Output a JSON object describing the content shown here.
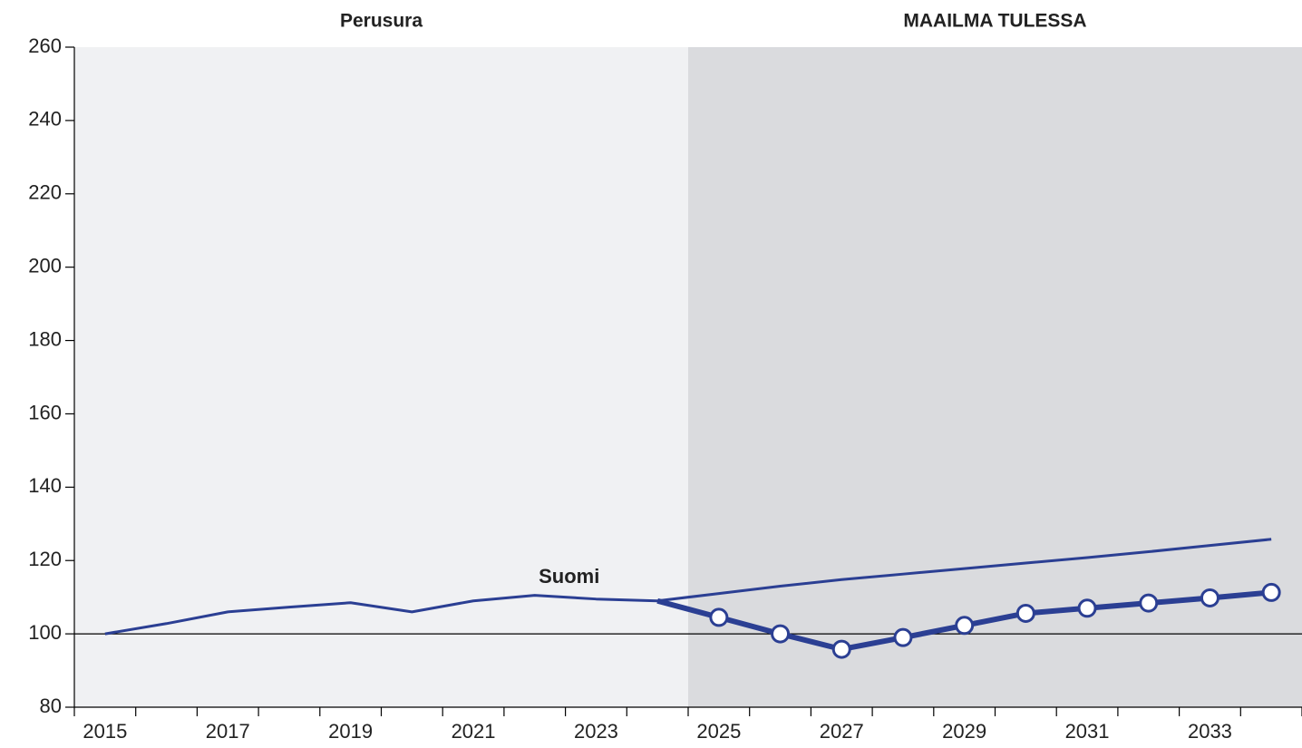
{
  "chart_data": {
    "type": "line",
    "categories": [
      "2015",
      null,
      "2017",
      null,
      "2019",
      null,
      "2021",
      null,
      "2023",
      null,
      "2025",
      null,
      "2027",
      null,
      "2029",
      null,
      "2031",
      null,
      "2033",
      null
    ],
    "series": [
      {
        "name": "Suomi",
        "color": "#2b3f93",
        "width": 3,
        "markers": false,
        "values": [
          100,
          102.8,
          106,
          107.3,
          108.5,
          106,
          109,
          110.5,
          109.5,
          109,
          111,
          113,
          114.8,
          116.3,
          117.8,
          119.3,
          120.8,
          122.4,
          124.1,
          125.8
        ]
      },
      {
        "color": "#2b3f93",
        "width": 6,
        "markers": true,
        "values": [
          null,
          null,
          null,
          null,
          null,
          null,
          null,
          null,
          null,
          109,
          104.5,
          100,
          95.8,
          99,
          102.3,
          105.6,
          107,
          108.4,
          109.8,
          111.3
        ]
      }
    ],
    "regions": [
      {
        "title": "Perusura",
        "from": 0,
        "to": 9,
        "color": "#f0f1f3"
      },
      {
        "title": "MAAILMA TULESSA",
        "from": 10,
        "to": 19,
        "color": "#dadbde"
      }
    ],
    "reference_line": 100,
    "ylim": [
      80,
      260
    ],
    "yticks": [
      80,
      100,
      120,
      140,
      160,
      180,
      200,
      220,
      240,
      260
    ]
  }
}
